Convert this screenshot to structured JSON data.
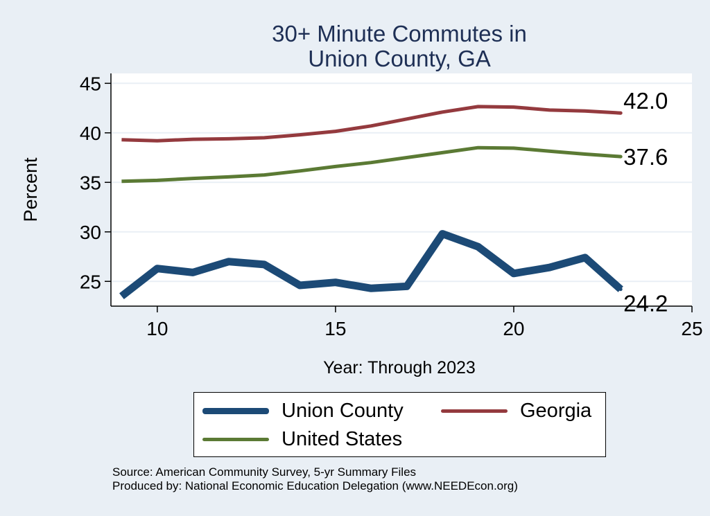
{
  "chart_data": {
    "type": "line",
    "title": [
      "30+ Minute Commutes in",
      "Union County, GA"
    ],
    "xlabel": "Year: Through 2023",
    "ylabel": "Percent",
    "xlim": [
      8.7,
      25
    ],
    "ylim": [
      22.5,
      46
    ],
    "xticks": [
      10,
      15,
      20,
      25
    ],
    "yticks": [
      25,
      30,
      35,
      40,
      45
    ],
    "grid": true,
    "legend_position": "bottom",
    "x": [
      9,
      10,
      11,
      12,
      13,
      14,
      15,
      16,
      17,
      18,
      19,
      20,
      21,
      22,
      23
    ],
    "series": [
      {
        "name": "Union County",
        "color": "#1c4a76",
        "values": [
          23.5,
          26.3,
          25.9,
          27.0,
          26.7,
          24.6,
          24.9,
          24.3,
          24.5,
          29.8,
          28.5,
          25.8,
          26.4,
          27.4,
          24.2
        ],
        "end_label": "24.2"
      },
      {
        "name": "Georgia",
        "color": "#943a3e",
        "values": [
          39.3,
          39.2,
          39.35,
          39.4,
          39.5,
          39.8,
          40.15,
          40.7,
          41.4,
          42.1,
          42.65,
          42.6,
          42.3,
          42.2,
          42.0
        ],
        "end_label": "42.0"
      },
      {
        "name": "United States",
        "color": "#5b7a34",
        "values": [
          35.1,
          35.2,
          35.4,
          35.55,
          35.75,
          36.15,
          36.6,
          37.0,
          37.5,
          38.0,
          38.5,
          38.45,
          38.15,
          37.85,
          37.6
        ],
        "end_label": "37.6"
      }
    ]
  },
  "source": {
    "line1": "Source: American Community Survey, 5-yr Summary Files",
    "line2": "Produced by: National Economic Education Delegation (www.NEEDEcon.org)"
  }
}
